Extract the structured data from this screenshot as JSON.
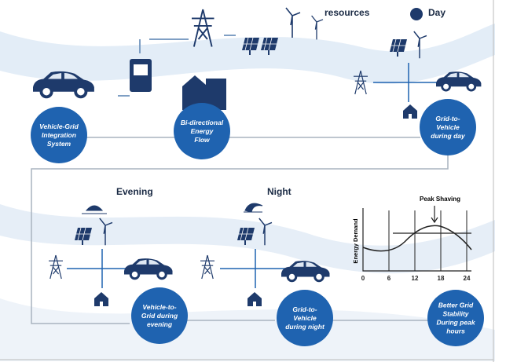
{
  "header": {
    "resources": "resources",
    "day": "Day"
  },
  "nodes": [
    {
      "lines": [
        "Vehicle-Grid",
        "Integration",
        "System"
      ]
    },
    {
      "lines": [
        "Bi-directional",
        "Energy",
        "Flow"
      ]
    },
    {
      "lines": [
        "Grid-to-",
        "Vehicle",
        "during day"
      ]
    },
    {
      "lines": [
        "Vehicle-to-",
        "Grid during",
        "evening"
      ]
    },
    {
      "lines": [
        "Grid-to-",
        "Vehicle",
        "during night"
      ]
    },
    {
      "lines": [
        "Better Grid",
        "Stability",
        "During peak",
        "hours"
      ]
    }
  ],
  "scenes": {
    "evening": "Evening",
    "night": "Night"
  },
  "demand_chart": {
    "title": "Peak Shaving",
    "y_label": "Energy Demand",
    "xticks": [
      0,
      6,
      12,
      18,
      24
    ]
  }
}
